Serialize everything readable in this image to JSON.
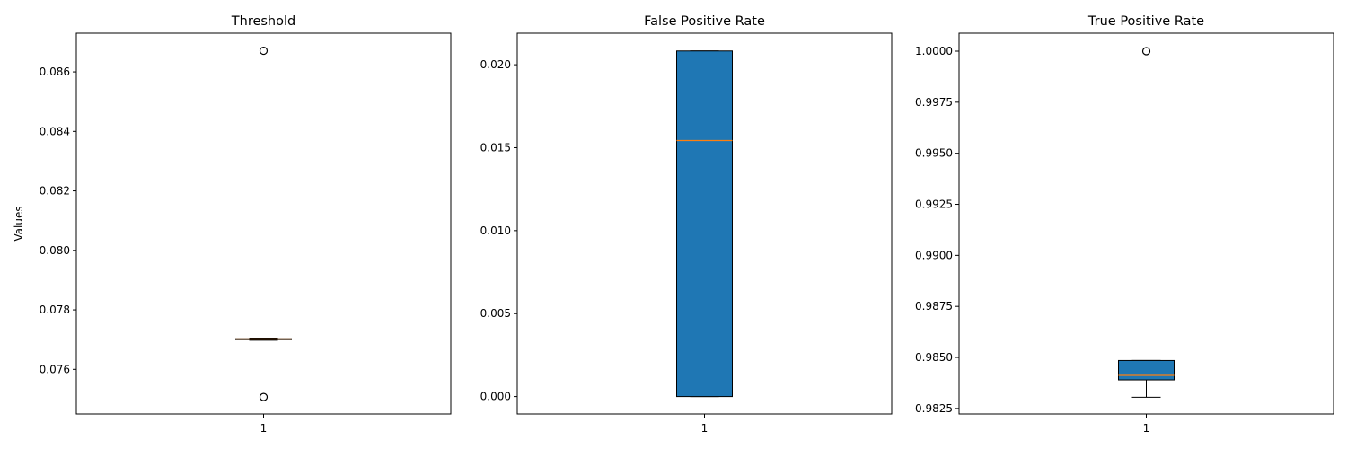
{
  "chart_data": [
    {
      "type": "boxplot",
      "title": "Threshold",
      "ylabel": "Values",
      "categories": [
        "1"
      ],
      "ylim": [
        0.0745,
        0.0873
      ],
      "yticks": [
        "0.076",
        "0.078",
        "0.080",
        "0.082",
        "0.084",
        "0.086"
      ],
      "ytick_values": [
        0.076,
        0.078,
        0.08,
        0.082,
        0.084,
        0.086
      ],
      "box": {
        "whisker_low": 0.07698,
        "q1": 0.077,
        "median": 0.07702,
        "q3": 0.07703,
        "whisker_high": 0.07705
      },
      "outliers": [
        0.08671,
        0.07507
      ],
      "patch_artist": true
    },
    {
      "type": "boxplot",
      "title": "False Positive Rate",
      "ylabel": "",
      "categories": [
        "1"
      ],
      "ylim": [
        -0.00105,
        0.0219
      ],
      "yticks": [
        "0.000",
        "0.005",
        "0.010",
        "0.015",
        "0.020"
      ],
      "ytick_values": [
        0.0,
        0.005,
        0.01,
        0.015,
        0.02
      ],
      "box": {
        "whisker_low": 0.0,
        "q1": 0.0,
        "median": 0.01543,
        "q3": 0.02083,
        "whisker_high": 0.02083
      },
      "outliers": [],
      "patch_artist": true
    },
    {
      "type": "boxplot",
      "title": "True Positive Rate",
      "ylabel": "",
      "categories": [
        "1"
      ],
      "ylim": [
        0.98223,
        1.00088
      ],
      "yticks": [
        "0.9825",
        "0.9850",
        "0.9875",
        "0.9900",
        "0.9925",
        "0.9950",
        "0.9975",
        "1.0000"
      ],
      "ytick_values": [
        0.9825,
        0.985,
        0.9875,
        0.99,
        0.9925,
        0.995,
        0.9975,
        1.0
      ],
      "box": {
        "whisker_low": 0.98305,
        "q1": 0.9839,
        "median": 0.98412,
        "q3": 0.98485,
        "whisker_high": 0.98485
      },
      "outliers": [
        1.0
      ],
      "patch_artist": true
    }
  ],
  "colors": {
    "box_fill": "#1f77b4",
    "median": "#ff7f0e",
    "edge": "#000000"
  }
}
